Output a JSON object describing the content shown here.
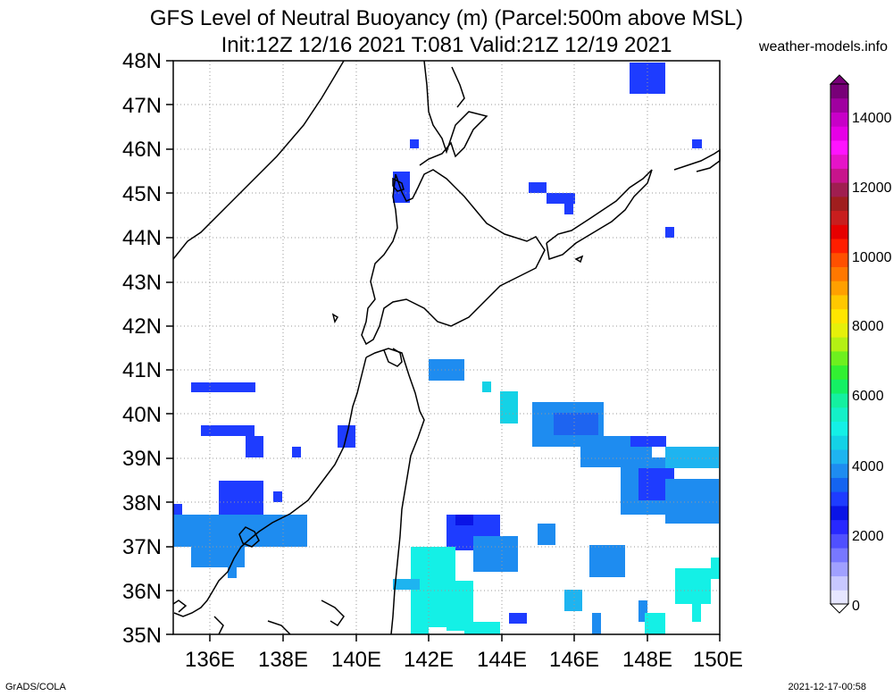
{
  "header": {
    "title_line1": "GFS Level of Neutral Buoyancy (m) (Parcel:500m above MSL)",
    "title_line2": "Init:12Z 12/16 2021 T:081 Valid:21Z 12/19 2021",
    "credit": "weather-models.info"
  },
  "footer": {
    "left": "GrADS/COLA",
    "right": "2021-12-17-00:58"
  },
  "map": {
    "lat_labels": [
      "48N",
      "47N",
      "46N",
      "45N",
      "44N",
      "43N",
      "42N",
      "41N",
      "40N",
      "39N",
      "38N",
      "37N",
      "36N",
      "35N"
    ],
    "lon_labels": [
      "136E",
      "138E",
      "140E",
      "142E",
      "144E",
      "146E",
      "148E",
      "150E"
    ]
  },
  "colorbar": {
    "labels": [
      "14000",
      "12000",
      "10000",
      "8000",
      "6000",
      "4000",
      "2000",
      "0"
    ],
    "colors": [
      "#e6e6ff",
      "#c8c8ff",
      "#a0a0ff",
      "#7878ff",
      "#5050ff",
      "#2828ff",
      "#0a14e6",
      "#1e3cff",
      "#1464f0",
      "#1e8cf0",
      "#1eb4f0",
      "#14d2e6",
      "#14f0e6",
      "#14f0c8",
      "#14f0a0",
      "#14f064",
      "#32f032",
      "#6ef01e",
      "#b4f014",
      "#e6f00a",
      "#ffe600",
      "#ffc800",
      "#ffa000",
      "#ff7800",
      "#ff5000",
      "#ff1e00",
      "#e60000",
      "#c81e1e",
      "#a01e1e",
      "#a01e50",
      "#c8148c",
      "#e614c8",
      "#ff14ff",
      "#e600e6",
      "#c800c8",
      "#a000a0",
      "#780078"
    ]
  }
}
